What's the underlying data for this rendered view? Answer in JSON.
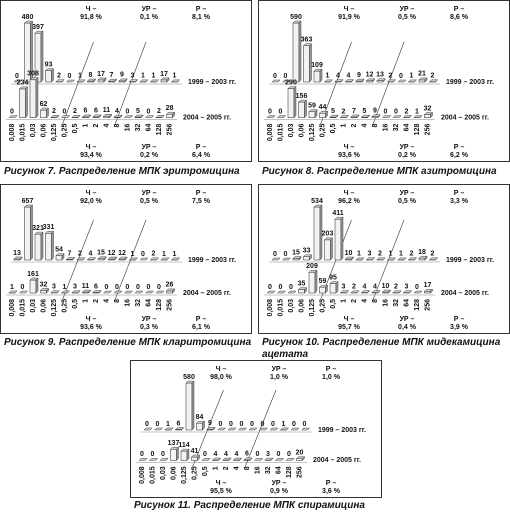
{
  "chart_data": [
    {
      "type": "bar3d",
      "title": "Рисунок 7. Распределение МПК эритромицина",
      "categories": [
        "0,008",
        "0,015",
        "0,03",
        "0,06",
        "0,125",
        "0,25",
        "0,5",
        "1",
        "2",
        "4",
        "8",
        "16",
        "32",
        "64",
        "128",
        "256"
      ],
      "series": [
        {
          "name": "1999 – 2003 гг.",
          "color": "#f2f2f2",
          "values": [
            0,
            480,
            397,
            93,
            2,
            0,
            1,
            8,
            17,
            7,
            9,
            3,
            1,
            1,
            17,
            1
          ]
        },
        {
          "name": "2004 – 2005 гг.",
          "color": "#f2f2f2",
          "values": [
            0,
            234,
            308,
            62,
            2,
            0,
            2,
            6,
            6,
            11,
            4,
            0,
            5,
            0,
            2,
            28
          ]
        }
      ],
      "annotations": {
        "top": [
          {
            "label": "Ч –",
            "value": "91,8 %"
          },
          {
            "label": "УР –",
            "value": "0,1 %"
          },
          {
            "label": "Р –",
            "value": "8,1 %"
          }
        ],
        "bottom": [
          {
            "label": "Ч –",
            "value": "93,4 %"
          },
          {
            "label": "УР –",
            "value": "0,2 %"
          },
          {
            "label": "Р –",
            "value": "6,4 %"
          }
        ]
      }
    },
    {
      "type": "bar3d",
      "title": "Рисунок 8. Распределение МПК азитромицина",
      "categories": [
        "0,008",
        "0,015",
        "0,03",
        "0,06",
        "0,125",
        "0,25",
        "0,5",
        "1",
        "2",
        "4",
        "8",
        "16",
        "32",
        "64",
        "128",
        "256"
      ],
      "series": [
        {
          "name": "1999 – 2003 гг.",
          "color": "#f2f2f2",
          "values": [
            0,
            0,
            590,
            363,
            109,
            1,
            4,
            4,
            9,
            12,
            13,
            2,
            0,
            1,
            21,
            2
          ]
        },
        {
          "name": "2004 – 2005 гг.",
          "color": "#f2f2f2",
          "values": [
            0,
            0,
            290,
            156,
            59,
            44,
            5,
            2,
            7,
            5,
            9,
            0,
            0,
            2,
            1,
            32
          ]
        }
      ],
      "annotations": {
        "top": [
          {
            "label": "Ч –",
            "value": "91,9 %"
          },
          {
            "label": "УР –",
            "value": "0,5 %"
          },
          {
            "label": "Р –",
            "value": "8,6 %"
          }
        ],
        "bottom": [
          {
            "label": "Ч –",
            "value": "93,6 %"
          },
          {
            "label": "УР –",
            "value": "0,2 %"
          },
          {
            "label": "Р –",
            "value": "6,2 %"
          }
        ]
      }
    },
    {
      "type": "bar3d",
      "title": "Рисунок 9. Распределение МПК кларитромицина",
      "categories": [
        "0,008",
        "0,015",
        "0,03",
        "0,06",
        "0,125",
        "0,25",
        "0,5",
        "1",
        "2",
        "4",
        "8",
        "16",
        "32",
        "64",
        "128",
        "256"
      ],
      "series": [
        {
          "name": "1999 – 2003 гг.",
          "color": "#f2f2f2",
          "values": [
            13,
            657,
            321,
            331,
            54,
            7,
            2,
            4,
            15,
            12,
            12,
            1,
            0,
            2,
            1,
            1
          ]
        },
        {
          "name": "2004 – 2005 гг.",
          "color": "#f2f2f2",
          "values": [
            1,
            0,
            161,
            32,
            3,
            1,
            3,
            11,
            6,
            0,
            0,
            0,
            0,
            0,
            0,
            26
          ]
        }
      ],
      "annotations": {
        "top": [
          {
            "label": "Ч –",
            "value": "92,0 %"
          },
          {
            "label": "УР –",
            "value": "0,5 %"
          },
          {
            "label": "Р –",
            "value": "7,5 %"
          }
        ],
        "bottom": [
          {
            "label": "Ч –",
            "value": "93,6 %"
          },
          {
            "label": "УР –",
            "value": "0,3 %"
          },
          {
            "label": "Р –",
            "value": "6,1 %"
          }
        ]
      }
    },
    {
      "type": "bar3d",
      "title": "Рисунок 10. Распределение МПК мидекамицина ацетата",
      "categories": [
        "0,008",
        "0,015",
        "0,03",
        "0,06",
        "0,125",
        "0,25",
        "0,5",
        "1",
        "2",
        "4",
        "8",
        "16",
        "32",
        "64",
        "128",
        "256"
      ],
      "series": [
        {
          "name": "1999 – 2003 гг.",
          "color": "#f2f2f2",
          "values": [
            0,
            0,
            15,
            33,
            534,
            203,
            411,
            10,
            1,
            3,
            2,
            1,
            1,
            2,
            18,
            2
          ]
        },
        {
          "name": "2004 – 2005 гг.",
          "color": "#f2f2f2",
          "values": [
            0,
            0,
            0,
            35,
            209,
            59,
            95,
            3,
            2,
            4,
            4,
            10,
            2,
            3,
            0,
            17
          ]
        }
      ],
      "annotations": {
        "top": [
          {
            "label": "Ч –",
            "value": "96,2 %"
          },
          {
            "label": "УР –",
            "value": "0,5 %"
          },
          {
            "label": "Р –",
            "value": "3,3 %"
          }
        ],
        "bottom": [
          {
            "label": "Ч –",
            "value": "95,7 %"
          },
          {
            "label": "УР –",
            "value": "0,4 %"
          },
          {
            "label": "Р –",
            "value": "3,9 %"
          }
        ]
      }
    },
    {
      "type": "bar3d",
      "title": "Рисунок 11. Распределение МПК спирамицина",
      "categories": [
        "0,008",
        "0,015",
        "0,03",
        "0,06",
        "0,125",
        "0,25",
        "0,5",
        "1",
        "2",
        "4",
        "8",
        "16",
        "32",
        "64",
        "128",
        "256"
      ],
      "series": [
        {
          "name": "1999 – 2003 гг.",
          "color": "#f2f2f2",
          "values": [
            0,
            0,
            1,
            6,
            580,
            84,
            9,
            0,
            0,
            0,
            0,
            0,
            0,
            1,
            0,
            0
          ]
        },
        {
          "name": "2004 – 2005 гг.",
          "color": "#f2f2f2",
          "values": [
            0,
            0,
            0,
            137,
            114,
            41,
            0,
            4,
            4,
            4,
            6,
            0,
            3,
            0,
            0,
            20
          ]
        }
      ],
      "annotations": {
        "top": [
          {
            "label": "Ч –",
            "value": "98,0 %"
          },
          {
            "label": "УР –",
            "value": "1,0 %"
          },
          {
            "label": "Р –",
            "value": "1,0 %"
          }
        ],
        "bottom": [
          {
            "label": "Ч –",
            "value": "95,5 %"
          },
          {
            "label": "УР –",
            "value": "0,9 %"
          },
          {
            "label": "Р –",
            "value": "3,6 %"
          }
        ]
      }
    }
  ]
}
